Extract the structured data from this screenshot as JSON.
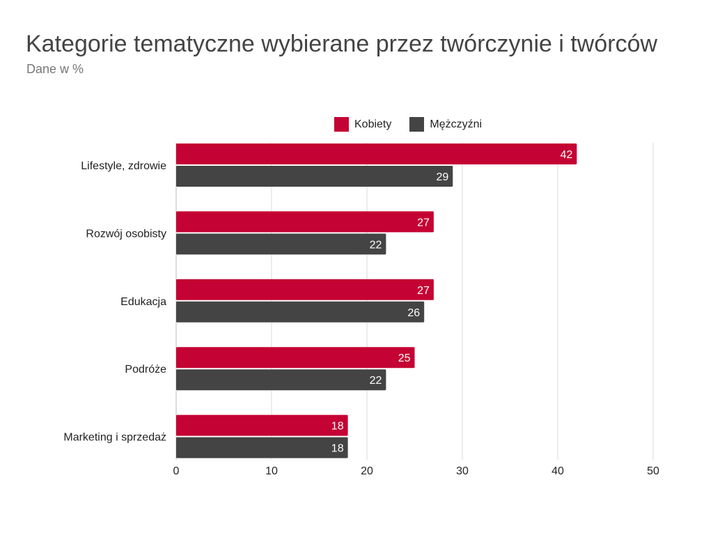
{
  "chart_data": {
    "type": "bar",
    "orientation": "horizontal",
    "title": "Kategorie tematyczne wybierane przez twórczynie i twórców",
    "subtitle": "Dane w %",
    "categories": [
      "Lifestyle, zdrowie",
      "Rozwój osobisty",
      "Edukacja",
      "Podróże",
      "Marketing i sprzedaż"
    ],
    "series": [
      {
        "name": "Kobiety",
        "color": "#c40233",
        "values": [
          42,
          27,
          27,
          25,
          18
        ]
      },
      {
        "name": "Mężczyźni",
        "color": "#444444",
        "values": [
          29,
          22,
          26,
          22,
          18
        ]
      }
    ],
    "xlim": [
      0,
      50
    ],
    "xticks": [
      "0",
      "10",
      "20",
      "30",
      "40",
      "50"
    ],
    "grid": true,
    "legend": "top",
    "data_labels": true
  }
}
